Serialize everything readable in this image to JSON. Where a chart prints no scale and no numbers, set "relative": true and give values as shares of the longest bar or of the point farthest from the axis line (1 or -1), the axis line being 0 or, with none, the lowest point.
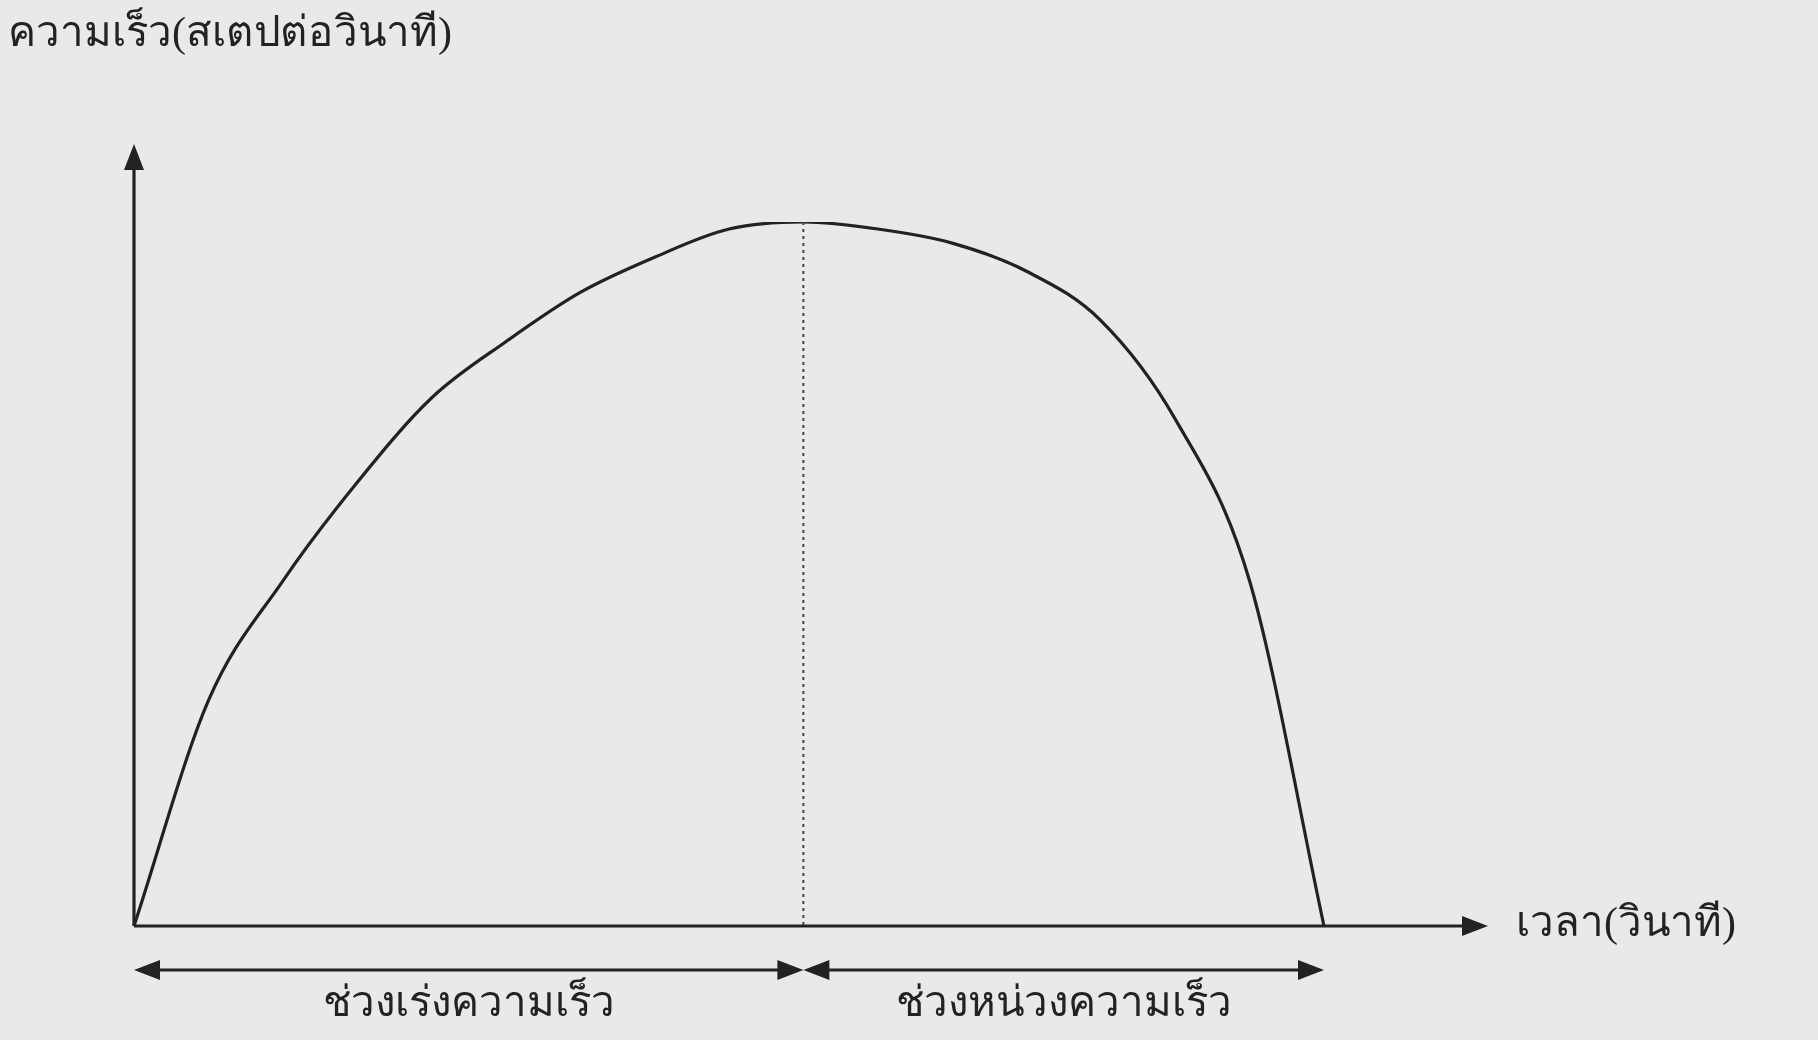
{
  "chart_data": {
    "type": "line",
    "relative": true,
    "ylabel": "ความเร็ว(สเตปต่อวินาที)",
    "xlabel": "เวลา(วินาที)",
    "color": "#222222",
    "marker": "none",
    "categories": [
      null,
      null,
      null,
      null,
      null,
      null,
      null,
      null,
      null,
      null,
      null,
      null,
      null,
      null,
      null,
      null,
      null
    ],
    "values": [
      0,
      0.32,
      0.49,
      0.63,
      0.75,
      0.83,
      0.9,
      0.95,
      0.99,
      1,
      0.99,
      0.97,
      0.93,
      0.86,
      0.72,
      0.49,
      0
    ],
    "annotations": [
      "ช่วงเร่งความเร็ว",
      "ช่วงหน่วงความเร็ว"
    ]
  }
}
